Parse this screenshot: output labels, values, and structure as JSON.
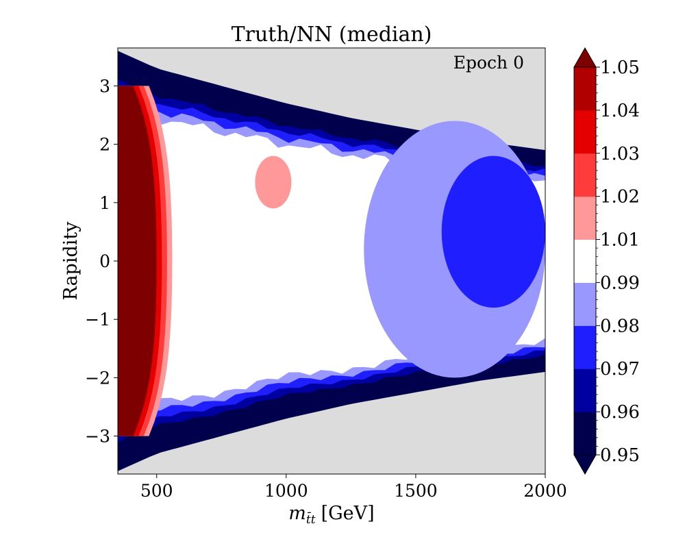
{
  "chart_data": {
    "type": "heatmap",
    "title": "Truth/NN (median)",
    "xlabel_main": "m",
    "xlabel_sub": "t̄t",
    "xlabel_unit": "[GeV]",
    "ylabel": "Rapidity",
    "annotation": "Epoch 0",
    "xlim": [
      350,
      2000
    ],
    "ylim": [
      -3.65,
      3.65
    ],
    "xticks": [
      500,
      1000,
      1500,
      2000
    ],
    "xtick_labels": [
      "500",
      "1000",
      "1500",
      "2000"
    ],
    "yticks": [
      3,
      2,
      1,
      0,
      -1,
      -2,
      -3
    ],
    "ytick_labels": [
      "3",
      "2",
      "1",
      "0",
      "−1",
      "−2",
      "−3"
    ],
    "grid": false,
    "background_color": "#dcdcdc",
    "colorbar": {
      "levels": [
        0.95,
        0.96,
        0.97,
        0.98,
        0.99,
        1.01,
        1.02,
        1.03,
        1.04,
        1.05
      ],
      "tick_labels": [
        "0.95",
        "0.96",
        "0.97",
        "0.98",
        "0.99",
        "1.01",
        "1.02",
        "1.03",
        "1.04",
        "1.05"
      ],
      "band_colors": [
        "#00004c",
        "#0000a0",
        "#1e1eff",
        "#9898ff",
        "#ffffff",
        "#ff9898",
        "#ff3c3c",
        "#e40000",
        "#b00000"
      ],
      "under_color": "#00004c",
      "over_color": "#7f0000",
      "extend": "both"
    },
    "domain_edge": {
      "x": [
        350,
        500,
        750,
        1000,
        1250,
        1500,
        1750,
        2000
      ],
      "y_abs": [
        3.6,
        3.3,
        3.0,
        2.7,
        2.45,
        2.25,
        2.05,
        1.9
      ]
    },
    "regions": [
      {
        "level": "<0.95",
        "desc": "outer band along the rapidity edge"
      },
      {
        "level": "0.96-0.97",
        "desc": "blue transition band"
      },
      {
        "level": "0.98-0.99",
        "desc": "light blue region at high mass"
      },
      {
        "level": "0.99-1.01",
        "desc": "white central plateau"
      },
      {
        "level": ">1.05",
        "desc": "dark red stripe at low mass near threshold"
      }
    ]
  }
}
